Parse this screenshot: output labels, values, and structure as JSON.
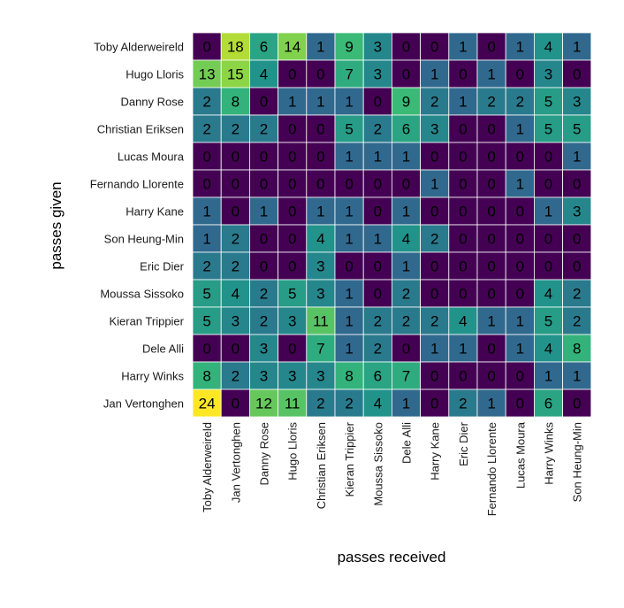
{
  "chart_data": {
    "type": "heatmap",
    "xlabel": "passes received",
    "ylabel": "passes given",
    "rows": [
      "Toby Alderweireld",
      "Hugo Lloris",
      "Danny Rose",
      "Christian Eriksen",
      "Lucas Moura",
      "Fernando Llorente",
      "Harry Kane",
      "Son Heung-Min",
      "Eric Dier",
      "Moussa Sissoko",
      "Kieran Trippier",
      "Dele Alli",
      "Harry Winks",
      "Jan Vertonghen"
    ],
    "columns": [
      "Toby Alderweireld",
      "Jan Vertonghen",
      "Danny Rose",
      "Hugo Lloris",
      "Christian Eriksen",
      "Kieran Trippier",
      "Moussa Sissoko",
      "Dele Alli",
      "Harry Kane",
      "Eric Dier",
      "Fernando Llorente",
      "Lucas Moura",
      "Harry Winks",
      "Son Heung-Min"
    ],
    "values": [
      [
        0,
        18,
        6,
        14,
        1,
        9,
        3,
        0,
        0,
        1,
        0,
        1,
        4,
        1
      ],
      [
        13,
        15,
        4,
        0,
        0,
        7,
        3,
        0,
        1,
        0,
        1,
        0,
        3,
        0
      ],
      [
        2,
        8,
        0,
        1,
        1,
        1,
        0,
        9,
        2,
        1,
        2,
        2,
        5,
        3
      ],
      [
        2,
        2,
        2,
        0,
        0,
        5,
        2,
        6,
        3,
        0,
        0,
        1,
        5,
        5
      ],
      [
        0,
        0,
        0,
        0,
        0,
        1,
        1,
        1,
        0,
        0,
        0,
        0,
        0,
        1
      ],
      [
        0,
        0,
        0,
        0,
        0,
        0,
        0,
        0,
        1,
        0,
        0,
        1,
        0,
        0
      ],
      [
        1,
        0,
        1,
        0,
        1,
        1,
        0,
        1,
        0,
        0,
        0,
        0,
        1,
        3
      ],
      [
        1,
        2,
        0,
        0,
        4,
        1,
        1,
        4,
        2,
        0,
        0,
        0,
        0,
        0
      ],
      [
        2,
        2,
        0,
        0,
        3,
        0,
        0,
        1,
        0,
        0,
        0,
        0,
        0,
        0
      ],
      [
        5,
        4,
        2,
        5,
        3,
        1,
        0,
        2,
        0,
        0,
        0,
        0,
        4,
        2
      ],
      [
        5,
        3,
        2,
        3,
        11,
        1,
        2,
        2,
        2,
        4,
        1,
        1,
        5,
        2
      ],
      [
        0,
        0,
        3,
        0,
        7,
        1,
        2,
        0,
        1,
        1,
        0,
        1,
        4,
        8
      ],
      [
        8,
        2,
        3,
        3,
        3,
        8,
        6,
        7,
        0,
        0,
        0,
        0,
        1,
        1
      ],
      [
        24,
        0,
        12,
        11,
        2,
        2,
        4,
        1,
        0,
        2,
        1,
        0,
        6,
        0
      ]
    ],
    "color_scale": {
      "low": "#440154",
      "stops": [
        "#440154",
        "#31688e",
        "#21918c",
        "#35b779",
        "#90d743",
        "#fde725"
      ],
      "high": "#fde725"
    },
    "legend": false,
    "grid": false
  }
}
